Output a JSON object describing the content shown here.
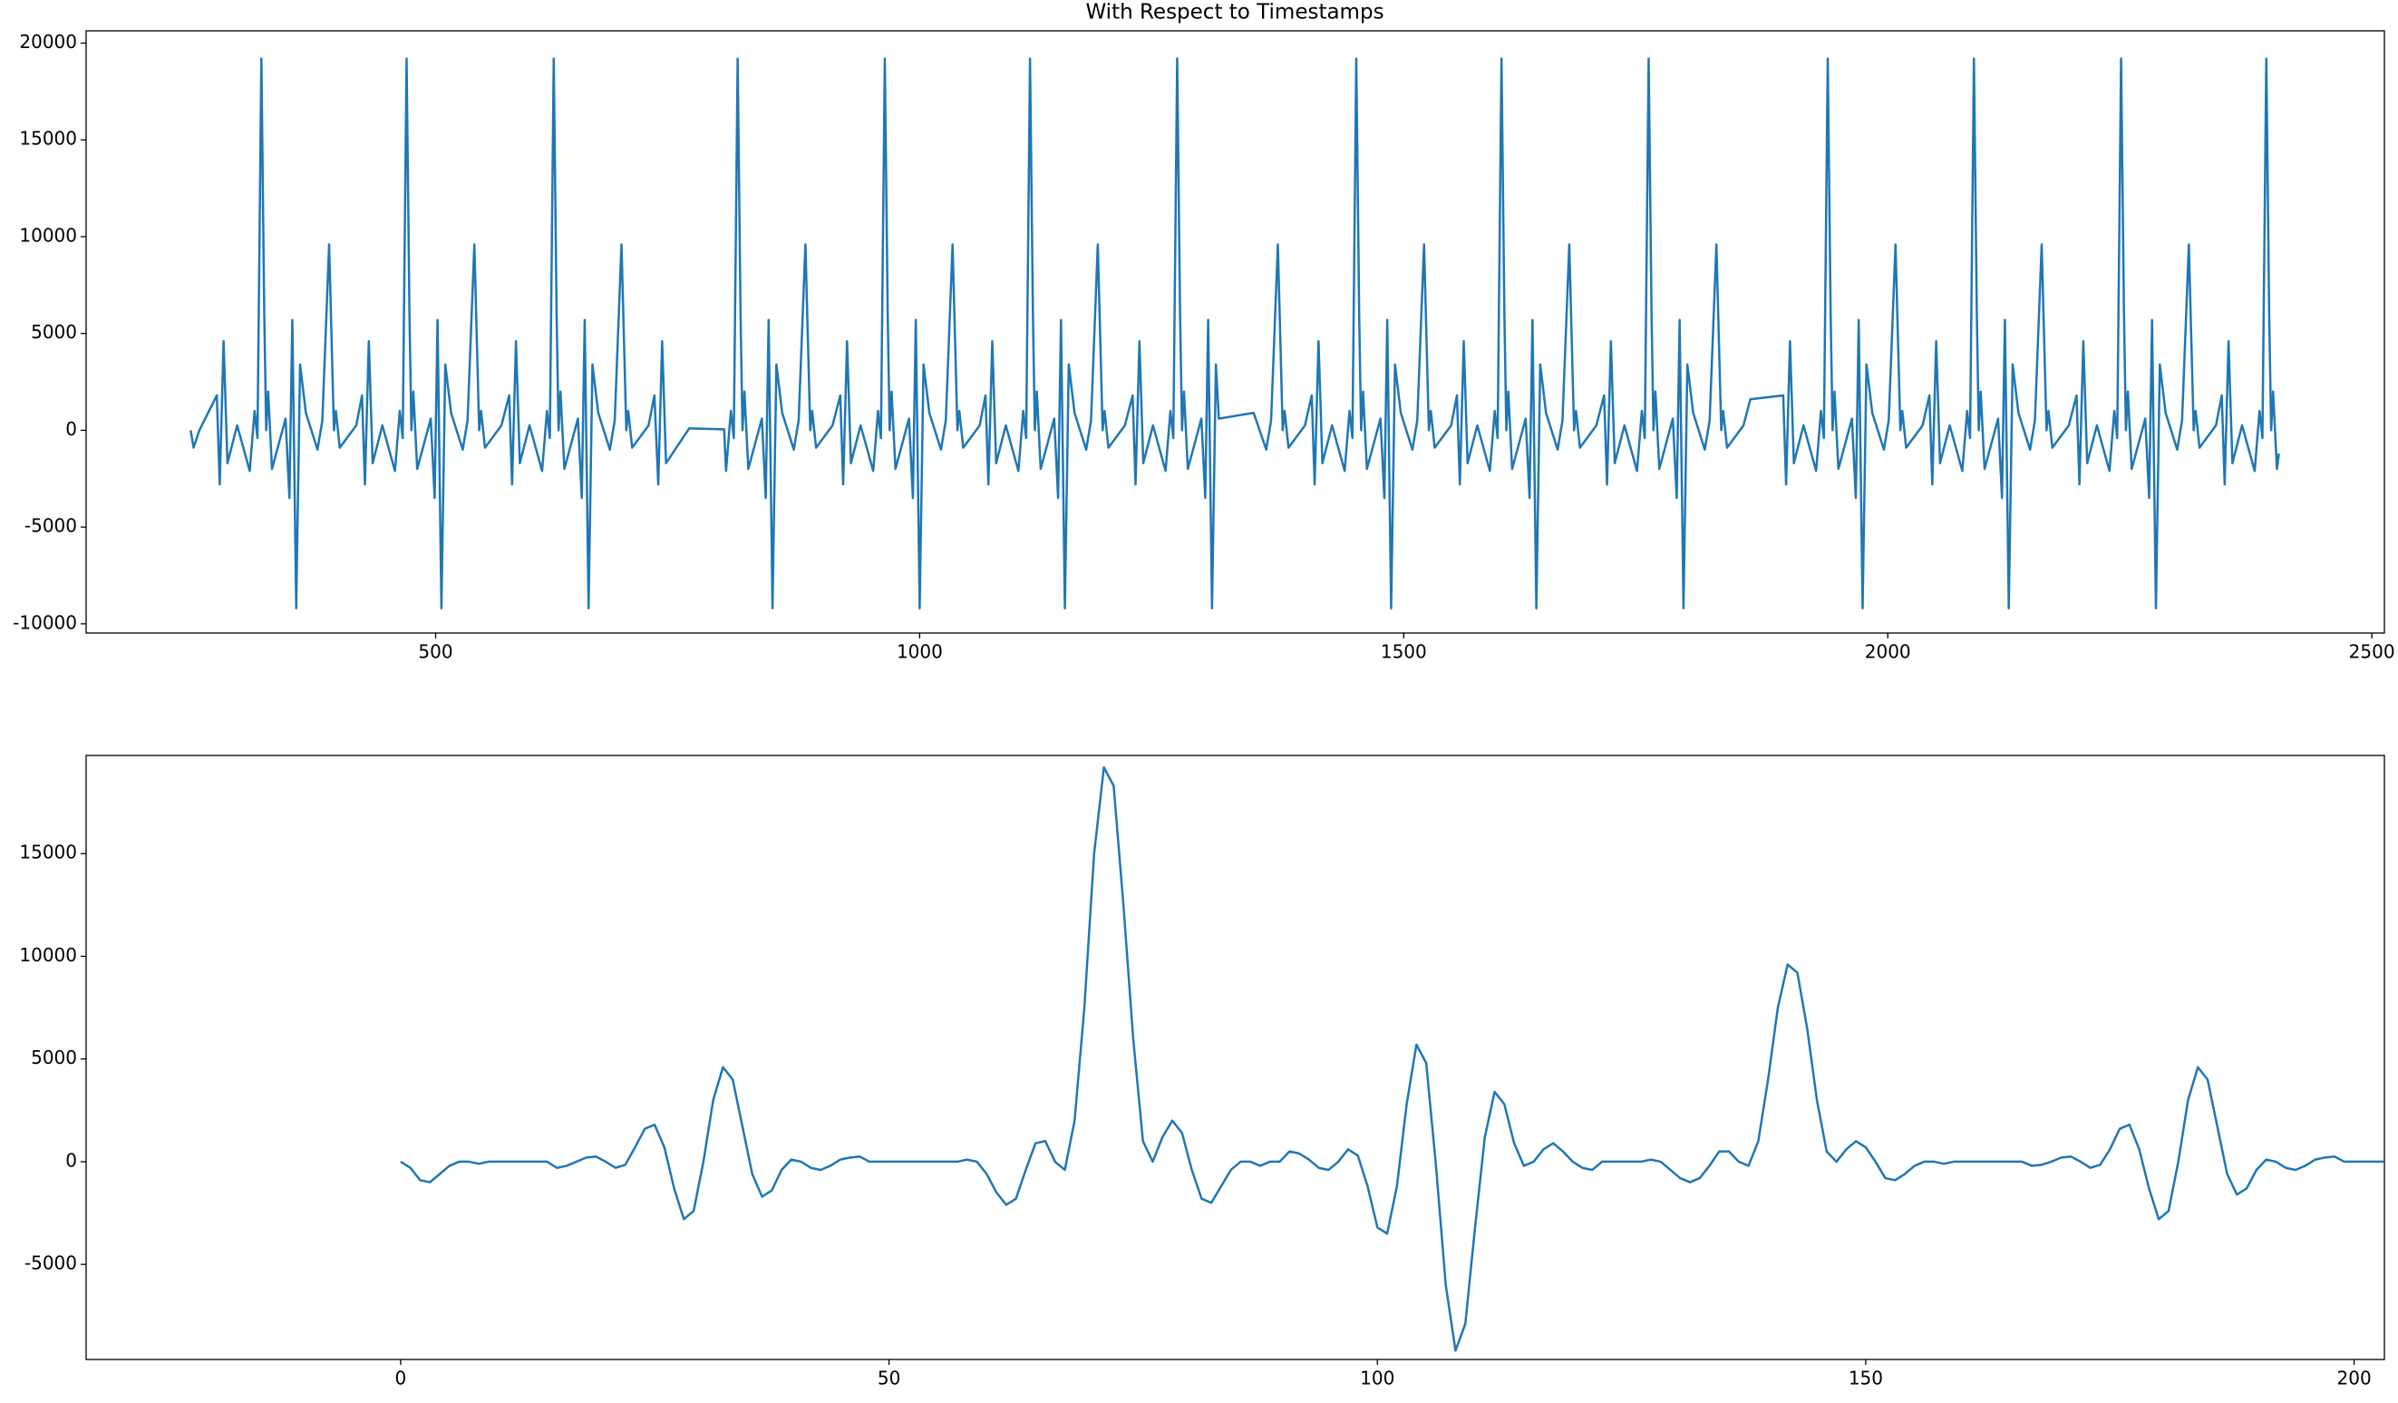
{
  "chart_data": [
    {
      "type": "line",
      "title": "With Respect to Timestamps",
      "color": "#1f77b4",
      "xlim": [
        139,
        2513
      ],
      "ylim": [
        -10475,
        20633
      ],
      "xticks": [
        500,
        1000,
        1500,
        2000,
        2500
      ],
      "yticks": [
        -10000,
        -5000,
        0,
        5000,
        10000,
        15000,
        20000
      ],
      "x": [
        247,
        250,
        256,
        274,
        277,
        281,
        285,
        295,
        308,
        313,
        316,
        320,
        323,
        325,
        327,
        331,
        345,
        349,
        352,
        356,
        360,
        366,
        378,
        383,
        390,
        395,
        397,
        401,
        418,
        424,
        427,
        431,
        435,
        445,
        458,
        463,
        466,
        470,
        473,
        475,
        477,
        481,
        495,
        499,
        502,
        506,
        510,
        516,
        528,
        533,
        540,
        545,
        547,
        551,
        568,
        576,
        579,
        583,
        587,
        597,
        610,
        615,
        618,
        622,
        625,
        627,
        629,
        633,
        647,
        651,
        654,
        658,
        662,
        668,
        680,
        685,
        692,
        697,
        699,
        703,
        720,
        726,
        730,
        734,
        738,
        762,
        798,
        800,
        805,
        808,
        812,
        815,
        817,
        819,
        823,
        837,
        841,
        844,
        848,
        852,
        858,
        870,
        875,
        882,
        887,
        889,
        893,
        910,
        918,
        921,
        925,
        929,
        939,
        952,
        957,
        960,
        964,
        967,
        969,
        971,
        975,
        989,
        993,
        996,
        1000,
        1004,
        1010,
        1022,
        1027,
        1034,
        1039,
        1041,
        1045,
        1062,
        1068,
        1071,
        1075,
        1079,
        1089,
        1102,
        1107,
        1110,
        1114,
        1117,
        1119,
        1121,
        1125,
        1139,
        1143,
        1146,
        1150,
        1154,
        1160,
        1172,
        1177,
        1184,
        1189,
        1191,
        1195,
        1212,
        1220,
        1223,
        1227,
        1231,
        1241,
        1254,
        1259,
        1262,
        1266,
        1269,
        1271,
        1273,
        1277,
        1291,
        1295,
        1298,
        1302,
        1306,
        1309,
        1345,
        1358,
        1363,
        1370,
        1375,
        1377,
        1381,
        1398,
        1405,
        1408,
        1412,
        1416,
        1426,
        1439,
        1444,
        1447,
        1451,
        1454,
        1456,
        1458,
        1462,
        1476,
        1480,
        1483,
        1487,
        1491,
        1497,
        1509,
        1514,
        1521,
        1526,
        1528,
        1532,
        1549,
        1555,
        1558,
        1562,
        1566,
        1576,
        1589,
        1594,
        1597,
        1601,
        1604,
        1606,
        1608,
        1612,
        1626,
        1630,
        1633,
        1637,
        1641,
        1647,
        1659,
        1664,
        1671,
        1676,
        1678,
        1682,
        1699,
        1707,
        1710,
        1714,
        1718,
        1728,
        1741,
        1746,
        1749,
        1753,
        1756,
        1758,
        1760,
        1764,
        1778,
        1782,
        1785,
        1789,
        1793,
        1799,
        1811,
        1816,
        1823,
        1828,
        1830,
        1834,
        1851,
        1858,
        1892,
        1895,
        1899,
        1903,
        1913,
        1926,
        1931,
        1934,
        1938,
        1941,
        1943,
        1945,
        1949,
        1963,
        1967,
        1970,
        1974,
        1978,
        1984,
        1996,
        2001,
        2008,
        2013,
        2015,
        2019,
        2036,
        2043,
        2046,
        2050,
        2054,
        2064,
        2077,
        2082,
        2085,
        2089,
        2092,
        2094,
        2096,
        2100,
        2114,
        2118,
        2121,
        2125,
        2129,
        2135,
        2147,
        2152,
        2159,
        2164,
        2166,
        2170,
        2187,
        2195,
        2198,
        2202,
        2206,
        2216,
        2229,
        2234,
        2237,
        2241,
        2244,
        2246,
        2248,
        2252,
        2266,
        2270,
        2273,
        2277,
        2281,
        2287,
        2299,
        2304,
        2311,
        2316,
        2318,
        2322,
        2339,
        2345,
        2348,
        2352,
        2356,
        2366,
        2379,
        2384,
        2387,
        2391,
        2394,
        2396,
        2398,
        2402,
        2404
      ],
      "values": [
        0,
        -900,
        0,
        1800,
        -2800,
        4600,
        -1700,
        250,
        -2100,
        1000,
        -400,
        19200,
        6000,
        0,
        2000,
        -2000,
        600,
        -3500,
        5700,
        -9200,
        3400,
        900,
        -1000,
        500,
        9600,
        0,
        1000,
        -900,
        250,
        1800,
        -2800,
        4600,
        -1700,
        250,
        -2100,
        1000,
        -400,
        19200,
        6000,
        0,
        2000,
        -2000,
        600,
        -3500,
        5700,
        -9200,
        3400,
        900,
        -1000,
        500,
        9600,
        0,
        1000,
        -900,
        250,
        1800,
        -2800,
        4600,
        -1700,
        250,
        -2100,
        1000,
        -400,
        19200,
        6000,
        0,
        2000,
        -2000,
        600,
        -3500,
        5700,
        -9200,
        3400,
        900,
        -1000,
        500,
        9600,
        0,
        1000,
        -900,
        250,
        1800,
        -2800,
        4600,
        -1700,
        100,
        50,
        -2100,
        1000,
        -400,
        19200,
        6000,
        0,
        2000,
        -2000,
        600,
        -3500,
        5700,
        -9200,
        3400,
        900,
        -1000,
        500,
        9600,
        0,
        1000,
        -900,
        250,
        1800,
        -2800,
        4600,
        -1700,
        250,
        -2100,
        1000,
        -400,
        19200,
        6000,
        0,
        2000,
        -2000,
        600,
        -3500,
        5700,
        -9200,
        3400,
        900,
        -1000,
        500,
        9600,
        0,
        1000,
        -900,
        250,
        1800,
        -2800,
        4600,
        -1700,
        250,
        -2100,
        1000,
        -400,
        19200,
        6000,
        0,
        2000,
        -2000,
        600,
        -3500,
        5700,
        -9200,
        3400,
        900,
        -1000,
        500,
        9600,
        0,
        1000,
        -900,
        250,
        1800,
        -2800,
        4600,
        -1700,
        250,
        -2100,
        1000,
        -400,
        19200,
        6000,
        0,
        2000,
        -2000,
        600,
        -3500,
        5700,
        -9200,
        3400,
        600,
        900,
        -1000,
        500,
        9600,
        0,
        1000,
        -900,
        250,
        1800,
        -2800,
        4600,
        -1700,
        250,
        -2100,
        1000,
        -400,
        19200,
        6000,
        0,
        2000,
        -2000,
        600,
        -3500,
        5700,
        -9200,
        3400,
        900,
        -1000,
        500,
        9600,
        0,
        1000,
        -900,
        250,
        1800,
        -2800,
        4600,
        -1700,
        250,
        -2100,
        1000,
        -400,
        19200,
        6000,
        0,
        2000,
        -2000,
        600,
        -3500,
        5700,
        -9200,
        3400,
        900,
        -1000,
        500,
        9600,
        0,
        1000,
        -900,
        250,
        1800,
        -2800,
        4600,
        -1700,
        250,
        -2100,
        1000,
        -400,
        19200,
        6000,
        0,
        2000,
        -2000,
        600,
        -3500,
        5700,
        -9200,
        3400,
        900,
        -1000,
        500,
        9600,
        0,
        1000,
        -900,
        250,
        1600,
        1800,
        -2800,
        4600,
        -1700,
        250,
        -2100,
        1000,
        -400,
        19200,
        6000,
        0,
        2000,
        -2000,
        600,
        -3500,
        5700,
        -9200,
        3400,
        900,
        -1000,
        500,
        9600,
        0,
        1000,
        -900,
        250,
        1800,
        -2800,
        4600,
        -1700,
        250,
        -2100,
        1000,
        -400,
        19200,
        6000,
        0,
        2000,
        -2000,
        600,
        -3500,
        5700,
        -9200,
        3400,
        900,
        -1000,
        500,
        9600,
        0,
        1000,
        -900,
        250,
        1800,
        -2800,
        4600,
        -1700,
        250,
        -2100,
        1000,
        -400,
        19200,
        6000,
        0,
        2000,
        -2000,
        600,
        -3500,
        5700,
        -9200,
        3400,
        900,
        -1000,
        500,
        9600,
        0,
        1000,
        -900,
        250,
        1800,
        -2800,
        4600,
        -1700,
        250,
        -2100,
        1000,
        -400,
        19200,
        6000,
        0,
        2000,
        -2000,
        -1200
      ]
    },
    {
      "type": "line",
      "color": "#1f77b4",
      "xlim": [
        -32.2,
        203.1
      ],
      "ylim": [
        -9630,
        19780
      ],
      "xticks": [
        0,
        50,
        100,
        150,
        200
      ],
      "yticks": [
        -5000,
        0,
        5000,
        10000,
        15000
      ],
      "x": [
        0,
        1,
        2,
        3,
        4,
        5,
        6,
        7,
        8,
        9,
        10,
        11,
        12,
        13,
        14,
        15,
        16,
        17,
        18,
        19,
        20,
        21,
        22,
        23,
        24,
        25,
        26,
        27,
        28,
        29,
        30,
        31,
        32,
        33,
        34,
        35,
        36,
        37,
        38,
        39,
        40,
        41,
        42,
        43,
        44,
        45,
        46,
        47,
        48,
        49,
        50,
        51,
        52,
        53,
        54,
        55,
        56,
        57,
        58,
        59,
        60,
        61,
        62,
        63,
        64,
        65,
        66,
        67,
        68,
        69,
        70,
        71,
        72,
        73,
        74,
        75,
        76,
        77,
        78,
        79,
        80,
        81,
        82,
        83,
        84,
        85,
        86,
        87,
        88,
        89,
        90,
        91,
        92,
        93,
        94,
        95,
        96,
        97,
        98,
        99,
        100,
        101,
        102,
        103,
        104,
        105,
        106,
        107,
        108,
        109,
        110,
        111,
        112,
        113,
        114,
        115,
        116,
        117,
        118,
        119,
        120,
        121,
        122,
        123,
        124,
        125,
        126,
        127,
        128,
        129,
        130,
        131,
        132,
        133,
        134,
        135,
        136,
        137,
        138,
        139,
        140,
        141,
        142,
        143,
        144,
        145,
        146,
        147,
        148,
        149,
        150,
        151,
        152,
        153,
        154,
        155,
        156,
        157,
        158,
        159,
        160,
        161,
        162,
        163,
        164,
        165,
        166,
        167,
        168,
        169,
        170,
        171,
        172,
        173,
        174,
        175,
        176,
        177,
        178,
        179,
        180,
        181,
        182,
        183,
        184,
        185,
        186,
        187,
        188,
        189,
        190,
        191,
        192,
        193,
        194,
        195,
        196,
        197,
        198,
        199,
        200,
        201,
        202,
        203
      ],
      "values": [
        0,
        -300,
        -900,
        -1000,
        -600,
        -200,
        0,
        0,
        -100,
        0,
        0,
        0,
        0,
        0,
        0,
        0,
        -300,
        -200,
        0,
        200,
        250,
        0,
        -300,
        -150,
        700,
        1600,
        1800,
        700,
        -1300,
        -2800,
        -2400,
        0,
        3000,
        4600,
        4000,
        1700,
        -600,
        -1700,
        -1400,
        -400,
        100,
        0,
        -300,
        -400,
        -200,
        100,
        200,
        250,
        0,
        0,
        0,
        0,
        0,
        0,
        0,
        0,
        0,
        0,
        100,
        0,
        -600,
        -1500,
        -2100,
        -1800,
        -400,
        900,
        1000,
        0,
        -400,
        2000,
        7500,
        15000,
        19200,
        18300,
        12500,
        6000,
        1000,
        0,
        1200,
        2000,
        1400,
        -400,
        -1800,
        -2000,
        -1200,
        -400,
        0,
        0,
        -200,
        0,
        0,
        500,
        400,
        100,
        -300,
        -400,
        0,
        600,
        300,
        -1200,
        -3200,
        -3500,
        -1200,
        2800,
        5700,
        4800,
        -200,
        -6000,
        -9200,
        -7900,
        -3200,
        1200,
        3400,
        2800,
        900,
        -200,
        0,
        600,
        900,
        500,
        0,
        -300,
        -400,
        0,
        0,
        0,
        0,
        0,
        100,
        0,
        -400,
        -800,
        -1000,
        -800,
        -200,
        500,
        500,
        0,
        -200,
        1000,
        4000,
        7500,
        9600,
        9200,
        6500,
        3000,
        500,
        0,
        600,
        1000,
        700,
        0,
        -800,
        -900,
        -600,
        -200,
        0,
        0,
        -100,
        0,
        0,
        0,
        0,
        0,
        0,
        0,
        0,
        -200,
        -150,
        0,
        200,
        250,
        0,
        -300,
        -150,
        600,
        1600,
        1800,
        600,
        -1300,
        -2800,
        -2400,
        0,
        3000,
        4600,
        4000,
        1700,
        -600,
        -1600,
        -1300,
        -400,
        100,
        0,
        -300,
        -400,
        -200,
        100,
        200,
        250,
        0,
        0,
        0,
        0,
        0
      ]
    }
  ]
}
